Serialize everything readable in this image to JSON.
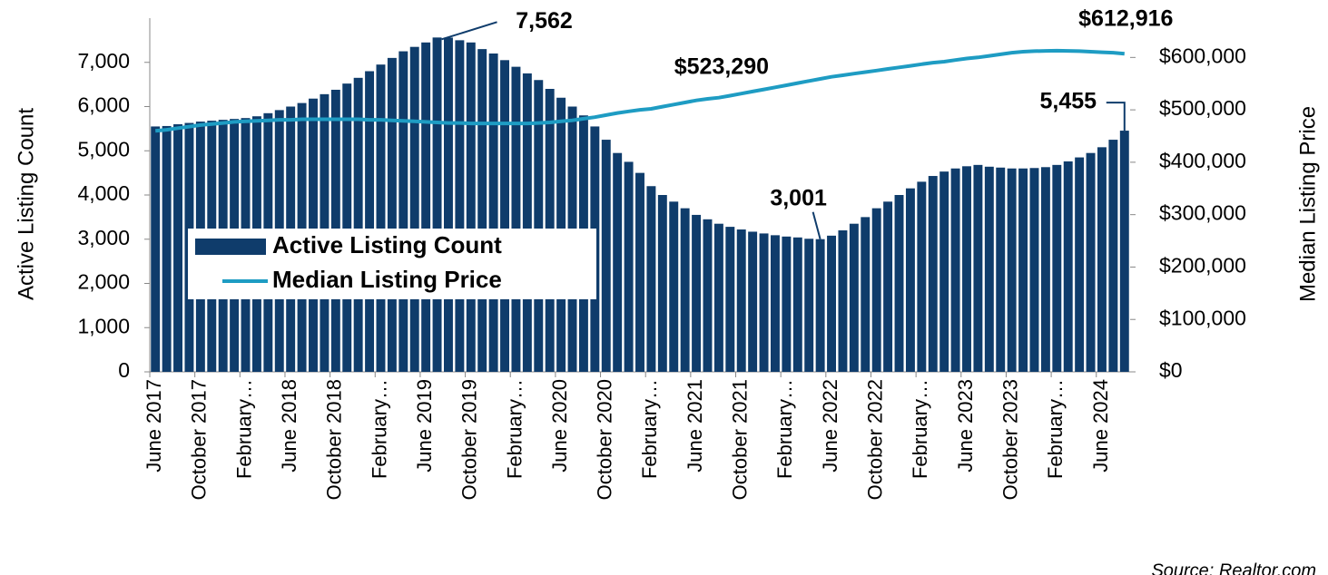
{
  "chart_data": {
    "type": "bar_line",
    "y_label": "Active Listing Count",
    "y2_label": "Median Listing Price",
    "source": "Source: Realtor.com",
    "categories": [
      "June 2017",
      null,
      null,
      null,
      "October 2017",
      null,
      null,
      null,
      "February…",
      null,
      null,
      null,
      "June 2018",
      null,
      null,
      null,
      "October 2018",
      null,
      null,
      null,
      "February…",
      null,
      null,
      null,
      "June 2019",
      null,
      null,
      null,
      "October 2019",
      null,
      null,
      null,
      "February…",
      null,
      null,
      null,
      "June 2020",
      null,
      null,
      null,
      "October 2020",
      null,
      null,
      null,
      "February…",
      null,
      null,
      null,
      "June 2021",
      null,
      null,
      null,
      "October 2021",
      null,
      null,
      null,
      "February…",
      null,
      null,
      null,
      "June 2022",
      null,
      null,
      null,
      "October 2022",
      null,
      null,
      null,
      "February…",
      null,
      null,
      null,
      "June 2023",
      null,
      null,
      null,
      "October 2023",
      null,
      null,
      null,
      "February…",
      null,
      null,
      null,
      "June 2024",
      null,
      null
    ],
    "series": [
      {
        "name": "Active Listing Count",
        "type": "bar",
        "color": "#0f3c6b",
        "values": [
          5550,
          5560,
          5600,
          5630,
          5660,
          5680,
          5700,
          5720,
          5740,
          5780,
          5850,
          5920,
          6000,
          6080,
          6180,
          6280,
          6380,
          6520,
          6650,
          6800,
          6950,
          7100,
          7250,
          7350,
          7450,
          7562,
          7560,
          7500,
          7450,
          7300,
          7200,
          7050,
          6900,
          6750,
          6600,
          6400,
          6200,
          6000,
          5800,
          5550,
          5250,
          4950,
          4750,
          4500,
          4200,
          4000,
          3850,
          3700,
          3550,
          3450,
          3350,
          3280,
          3220,
          3170,
          3130,
          3090,
          3060,
          3040,
          3010,
          3001,
          3080,
          3200,
          3350,
          3500,
          3700,
          3850,
          4000,
          4150,
          4300,
          4430,
          4530,
          4600,
          4650,
          4680,
          4640,
          4620,
          4600,
          4600,
          4610,
          4630,
          4680,
          4760,
          4850,
          4950,
          5080,
          5250,
          5455
        ],
        "value_labels": [
          null,
          null,
          null,
          null,
          null,
          null,
          null,
          null,
          null,
          null,
          null,
          null,
          null,
          null,
          null,
          null,
          null,
          null,
          null,
          null,
          null,
          null,
          null,
          null,
          null,
          "7,562",
          null,
          null,
          null,
          null,
          null,
          null,
          null,
          null,
          null,
          null,
          null,
          null,
          null,
          null,
          null,
          null,
          null,
          null,
          null,
          null,
          null,
          null,
          null,
          null,
          null,
          null,
          null,
          null,
          null,
          null,
          null,
          null,
          null,
          "3,001",
          null,
          null,
          null,
          null,
          null,
          null,
          null,
          null,
          null,
          null,
          null,
          null,
          null,
          null,
          null,
          null,
          null,
          null,
          null,
          null,
          null,
          null,
          null,
          null,
          null,
          null,
          "5,455"
        ]
      },
      {
        "name": "Median Listing Price",
        "type": "line",
        "axis": "y2",
        "color": "#1e9cc3",
        "values": [
          460000,
          462000,
          465000,
          468000,
          471000,
          473000,
          475000,
          477000,
          478000,
          479000,
          480000,
          481000,
          481000,
          482000,
          482000,
          482000,
          482000,
          482000,
          482000,
          481000,
          481000,
          480000,
          479000,
          478000,
          477000,
          476000,
          475000,
          475000,
          474000,
          474000,
          474000,
          474000,
          474000,
          474000,
          475000,
          476000,
          478000,
          480000,
          483000,
          486000,
          490000,
          494000,
          497000,
          500000,
          502000,
          506000,
          510000,
          514000,
          518000,
          521000,
          523290,
          527000,
          531000,
          535000,
          539000,
          543000,
          547000,
          551000,
          555000,
          559000,
          563000,
          566000,
          569000,
          572000,
          575000,
          578000,
          581000,
          584000,
          587000,
          590000,
          592000,
          595000,
          598000,
          600000,
          603000,
          606000,
          609000,
          611000,
          612000,
          612500,
          612916,
          612500,
          612000,
          611000,
          610000,
          609000,
          607000
        ],
        "value_labels": [
          null,
          null,
          null,
          null,
          null,
          null,
          null,
          null,
          null,
          null,
          null,
          null,
          null,
          null,
          null,
          null,
          null,
          null,
          null,
          null,
          null,
          null,
          null,
          null,
          null,
          null,
          null,
          null,
          null,
          null,
          null,
          null,
          null,
          null,
          null,
          null,
          null,
          null,
          null,
          null,
          null,
          null,
          null,
          null,
          null,
          null,
          null,
          null,
          null,
          null,
          "$523,290",
          null,
          null,
          null,
          null,
          null,
          null,
          null,
          null,
          null,
          null,
          null,
          null,
          null,
          null,
          null,
          null,
          null,
          null,
          null,
          null,
          null,
          null,
          null,
          null,
          null,
          null,
          null,
          null,
          null,
          "$612,916",
          null,
          null,
          null,
          null,
          null,
          null
        ]
      }
    ],
    "ylim": [
      0,
      8000
    ],
    "yticks": [
      0,
      {
        "value": 1000,
        "label": "1,000"
      },
      {
        "value": 2000,
        "label": "2,000"
      },
      {
        "value": 3000,
        "label": "3,000"
      },
      {
        "value": 4000,
        "label": "4,000"
      },
      {
        "value": 5000,
        "label": "5,000"
      },
      {
        "value": 6000,
        "label": "6,000"
      },
      {
        "value": 7000,
        "label": "7,000"
      }
    ],
    "y2lim": [
      0,
      675000
    ],
    "y2ticks": [
      {
        "value": 0,
        "label": "$0"
      },
      {
        "value": 100000,
        "label": "$100,000"
      },
      {
        "value": 200000,
        "label": "$200,000"
      },
      {
        "value": 300000,
        "label": "$300,000"
      },
      {
        "value": 400000,
        "label": "$400,000"
      },
      {
        "value": 500000,
        "label": "$500,000"
      },
      {
        "value": 600000,
        "label": "$600,000"
      }
    ],
    "grid": false,
    "legend": "left"
  }
}
